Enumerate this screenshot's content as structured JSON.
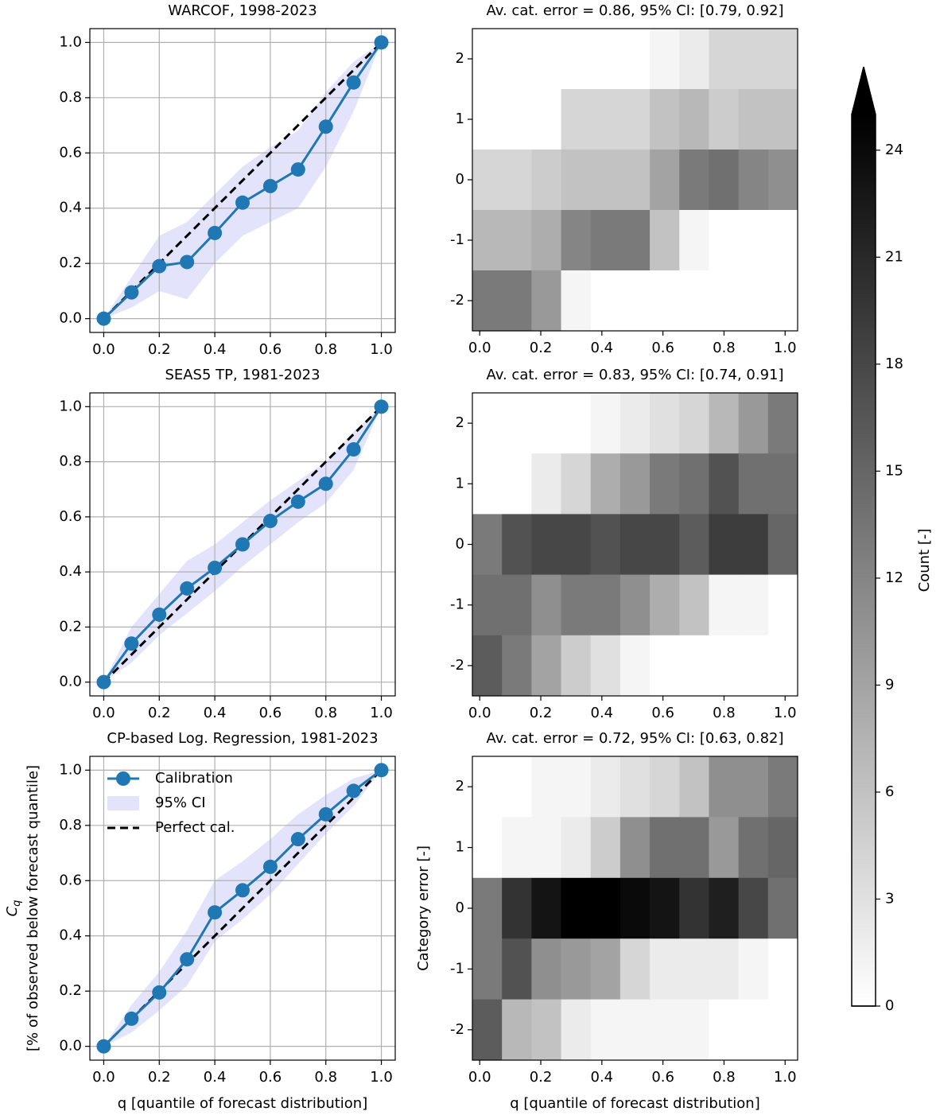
{
  "chart_data": [
    {
      "type": "line",
      "title": "WARCOF, 1998-2023",
      "x": [
        0,
        0.1,
        0.2,
        0.3,
        0.4,
        0.5,
        0.6,
        0.7,
        0.8,
        0.9,
        1.0
      ],
      "series": [
        {
          "color": "#1f77b4",
          "values": [
            0,
            0.095,
            0.19,
            0.205,
            0.31,
            0.42,
            0.48,
            0.54,
            0.695,
            0.855,
            1.0
          ]
        }
      ],
      "band": {
        "color": "#e3e3fb",
        "lower": [
          0,
          0.04,
          0.1,
          0.07,
          0.2,
          0.3,
          0.35,
          0.4,
          0.55,
          0.75,
          1.0
        ],
        "upper": [
          0,
          0.15,
          0.3,
          0.35,
          0.45,
          0.55,
          0.62,
          0.68,
          0.82,
          0.93,
          1.0
        ]
      },
      "reference": {
        "color": "#000000",
        "x": [
          0,
          1
        ],
        "values": [
          0,
          1
        ]
      },
      "xlim": [
        -0.05,
        1.05
      ],
      "ylim": [
        -0.05,
        1.05
      ],
      "xticks": [
        {
          "value": 0,
          "label": "0.0"
        },
        0.2,
        0.4,
        0.6,
        0.8,
        {
          "value": 1,
          "label": "1.0"
        }
      ],
      "yticks": [
        {
          "value": 0,
          "label": "0.0"
        },
        0.2,
        0.4,
        0.6,
        0.8,
        {
          "value": 1,
          "label": "1.0"
        }
      ],
      "grid": true
    },
    {
      "type": "heatmap",
      "title": "Av. cat. error = 0.86, 95% CI: [0.79, 0.92]",
      "x": [
        0,
        0.1,
        0.2,
        0.3,
        0.4,
        0.5,
        0.6,
        0.7,
        0.8,
        0.9,
        1.0
      ],
      "rows": [
        2,
        1,
        0,
        -1,
        -2
      ],
      "values": [
        [
          0,
          0,
          0,
          0,
          0,
          0,
          1,
          2,
          4,
          4,
          4
        ],
        [
          0,
          0,
          0,
          4,
          4,
          4,
          6,
          7,
          5,
          6,
          6
        ],
        [
          4,
          4,
          5,
          6,
          6,
          6,
          9,
          13,
          14,
          12,
          11
        ],
        [
          7,
          7,
          8,
          12,
          13,
          13,
          6,
          1,
          0,
          0,
          0
        ],
        [
          13,
          13,
          10,
          1,
          0,
          0,
          0,
          0,
          0,
          0,
          0
        ]
      ],
      "xlim": [
        -0.024,
        1.041
      ],
      "ylim": [
        -2.5,
        2.5
      ],
      "xticks": [
        {
          "value": 0,
          "label": "0.0"
        },
        0.2,
        0.4,
        0.6,
        0.8,
        {
          "value": 1,
          "label": "1.0"
        }
      ],
      "yticks": [
        -2,
        -1,
        0,
        1,
        2
      ]
    },
    {
      "type": "line",
      "title": "SEAS5 TP, 1981-2023",
      "x": [
        0,
        0.1,
        0.2,
        0.3,
        0.4,
        0.5,
        0.6,
        0.7,
        0.8,
        0.9,
        1.0
      ],
      "series": [
        {
          "color": "#1f77b4",
          "values": [
            0,
            0.14,
            0.245,
            0.34,
            0.415,
            0.5,
            0.585,
            0.655,
            0.72,
            0.845,
            1.0
          ]
        }
      ],
      "band": {
        "color": "#e3e3fb",
        "lower": [
          0,
          0.07,
          0.17,
          0.25,
          0.33,
          0.42,
          0.5,
          0.58,
          0.65,
          0.77,
          1.0
        ],
        "upper": [
          0,
          0.2,
          0.32,
          0.44,
          0.5,
          0.58,
          0.66,
          0.73,
          0.8,
          0.91,
          1.0
        ]
      },
      "reference": {
        "color": "#000000",
        "x": [
          0,
          1
        ],
        "values": [
          0,
          1
        ]
      },
      "xlim": [
        -0.05,
        1.05
      ],
      "ylim": [
        -0.05,
        1.05
      ],
      "xticks": [
        {
          "value": 0,
          "label": "0.0"
        },
        0.2,
        0.4,
        0.6,
        0.8,
        {
          "value": 1,
          "label": "1.0"
        }
      ],
      "yticks": [
        {
          "value": 0,
          "label": "0.0"
        },
        0.2,
        0.4,
        0.6,
        0.8,
        {
          "value": 1,
          "label": "1.0"
        }
      ],
      "grid": true
    },
    {
      "type": "heatmap",
      "title": "Av. cat. error = 0.83, 95% CI: [0.74, 0.91]",
      "x": [
        0,
        0.1,
        0.2,
        0.3,
        0.4,
        0.5,
        0.6,
        0.7,
        0.8,
        0.9,
        1.0
      ],
      "rows": [
        2,
        1,
        0,
        -1,
        -2
      ],
      "values": [
        [
          0,
          0,
          0,
          0,
          1,
          2,
          3,
          4,
          7,
          10,
          13
        ],
        [
          0,
          0,
          2,
          4,
          8,
          10,
          13,
          14,
          17,
          14,
          14
        ],
        [
          13,
          17,
          18,
          18,
          17,
          18,
          18,
          16,
          19,
          19,
          15
        ],
        [
          14,
          14,
          11,
          13,
          13,
          11,
          8,
          6,
          1,
          1,
          0
        ],
        [
          16,
          13,
          9,
          5,
          3,
          1,
          0,
          0,
          0,
          0,
          0
        ]
      ],
      "xlim": [
        -0.024,
        1.041
      ],
      "ylim": [
        -2.5,
        2.5
      ],
      "xticks": [
        {
          "value": 0,
          "label": "0.0"
        },
        0.2,
        0.4,
        0.6,
        0.8,
        {
          "value": 1,
          "label": "1.0"
        }
      ],
      "yticks": [
        -2,
        -1,
        0,
        1,
        2
      ]
    },
    {
      "type": "line",
      "title": "CP-based Log. Regression, 1981-2023",
      "x": [
        0,
        0.1,
        0.2,
        0.3,
        0.4,
        0.5,
        0.6,
        0.7,
        0.8,
        0.9,
        1.0
      ],
      "series": [
        {
          "name": "Calibration",
          "color": "#1f77b4",
          "values": [
            0,
            0.1,
            0.195,
            0.315,
            0.485,
            0.565,
            0.65,
            0.75,
            0.84,
            0.925,
            1.0
          ]
        }
      ],
      "band": {
        "name": "95% CI",
        "color": "#e3e3fb",
        "lower": [
          0,
          0.05,
          0.13,
          0.22,
          0.38,
          0.46,
          0.55,
          0.66,
          0.77,
          0.87,
          1.0
        ],
        "upper": [
          0,
          0.15,
          0.27,
          0.42,
          0.6,
          0.67,
          0.75,
          0.84,
          0.91,
          0.97,
          1.0
        ]
      },
      "reference": {
        "name": "Perfect cal.",
        "color": "#000000",
        "x": [
          0,
          1
        ],
        "values": [
          0,
          1
        ]
      },
      "legend": "upper left",
      "xlabel": "q [quantile of forecast distribution]",
      "ylabel": {
        "symbol": "C",
        "subscript": "q",
        "text": "[% of observed below forecast quantile]"
      },
      "xlim": [
        -0.05,
        1.05
      ],
      "ylim": [
        -0.05,
        1.05
      ],
      "xticks": [
        {
          "value": 0,
          "label": "0.0"
        },
        0.2,
        0.4,
        0.6,
        0.8,
        {
          "value": 1,
          "label": "1.0"
        }
      ],
      "yticks": [
        {
          "value": 0,
          "label": "0.0"
        },
        0.2,
        0.4,
        0.6,
        0.8,
        {
          "value": 1,
          "label": "1.0"
        }
      ],
      "grid": true
    },
    {
      "type": "heatmap",
      "title": "Av. cat. error = 0.72, 95% CI: [0.63, 0.82]",
      "x": [
        0,
        0.1,
        0.2,
        0.3,
        0.4,
        0.5,
        0.6,
        0.7,
        0.8,
        0.9,
        1.0
      ],
      "rows": [
        2,
        1,
        0,
        -1,
        -2
      ],
      "values": [
        [
          0,
          0,
          1,
          1,
          2,
          3,
          4,
          6,
          11,
          11,
          13
        ],
        [
          0,
          1,
          1,
          2,
          5,
          11,
          14,
          14,
          10,
          14,
          15
        ],
        [
          13,
          20,
          23,
          25,
          25,
          24,
          23,
          20,
          22,
          18,
          14
        ],
        [
          13,
          17,
          11,
          10,
          9,
          4,
          2,
          2,
          2,
          1,
          0
        ],
        [
          16,
          7,
          6,
          2,
          1,
          1,
          1,
          1,
          0,
          0,
          0
        ]
      ],
      "xlabel": "q [quantile of forecast distribution]",
      "ylabel": "Category error [-]",
      "xlim": [
        -0.024,
        1.041
      ],
      "ylim": [
        -2.5,
        2.5
      ],
      "xticks": [
        {
          "value": 0,
          "label": "0.0"
        },
        0.2,
        0.4,
        0.6,
        0.8,
        {
          "value": 1,
          "label": "1.0"
        }
      ],
      "yticks": [
        -2,
        -1,
        0,
        1,
        2
      ]
    },
    {
      "type": "colorbar",
      "label": "Count [-]",
      "lim": [
        0,
        25
      ],
      "ticks": [
        0,
        3,
        6,
        9,
        12,
        15,
        18,
        21,
        24
      ],
      "extend": "max",
      "colors": [
        "#ffffff",
        "#000000"
      ]
    }
  ]
}
